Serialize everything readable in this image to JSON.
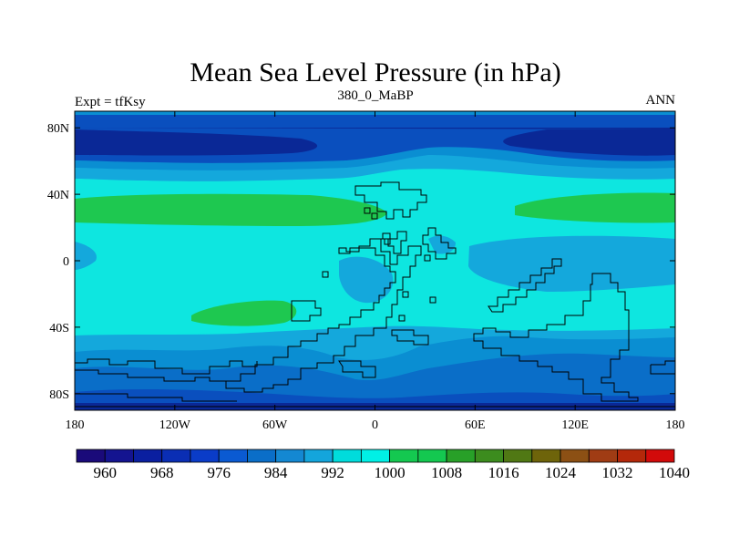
{
  "chart_data": {
    "type": "heatmap",
    "title": "Mean Sea Level Pressure (in hPa)",
    "subtitle_left": "Expt = tfKsy",
    "subtitle_center": "380_0_MaBP",
    "subtitle_right": "ANN",
    "x_range": [
      -180,
      180
    ],
    "y_range": [
      -90,
      90
    ],
    "x_ticks": [
      {
        "value": -180,
        "label": "180"
      },
      {
        "value": -120,
        "label": "120W"
      },
      {
        "value": -60,
        "label": "60W"
      },
      {
        "value": 0,
        "label": "0"
      },
      {
        "value": 60,
        "label": "60E"
      },
      {
        "value": 120,
        "label": "120E"
      },
      {
        "value": 180,
        "label": "180"
      }
    ],
    "y_ticks": [
      {
        "value": 80,
        "label": "80N"
      },
      {
        "value": 40,
        "label": "40N"
      },
      {
        "value": 0,
        "label": "0"
      },
      {
        "value": -40,
        "label": "40S"
      },
      {
        "value": -80,
        "label": "80S"
      }
    ],
    "colorbar": {
      "levels": [
        960,
        964,
        968,
        972,
        976,
        980,
        984,
        988,
        992,
        996,
        1000,
        1004,
        1008,
        1012,
        1016,
        1020,
        1024,
        1028,
        1032,
        1036,
        1040
      ],
      "tick_labels": [
        "960",
        "968",
        "976",
        "984",
        "992",
        "1000",
        "1008",
        "1016",
        "1024",
        "1032",
        "1040"
      ],
      "colors": [
        "#1a0a7a",
        "#141490",
        "#0a1fa0",
        "#0a2eb4",
        "#0a3cc8",
        "#0a5ad2",
        "#0a6ec8",
        "#1488d2",
        "#14a5dc",
        "#00dcdc",
        "#00f0e6",
        "#14c850",
        "#14c850",
        "#28a028",
        "#3c8c1e",
        "#507814",
        "#6e640a",
        "#8c5014",
        "#a03c14",
        "#b4280a",
        "#d20a0a"
      ]
    },
    "fields": {
      "background": "#0ee6e0",
      "band_990": "#14a8dc",
      "band_985": "#0a8ed2",
      "band_980": "#0a6ec8",
      "band_975": "#0a4fbe",
      "band_965": "#0a2896",
      "band_1005": "#1ec850",
      "coastline": "#000000"
    }
  }
}
